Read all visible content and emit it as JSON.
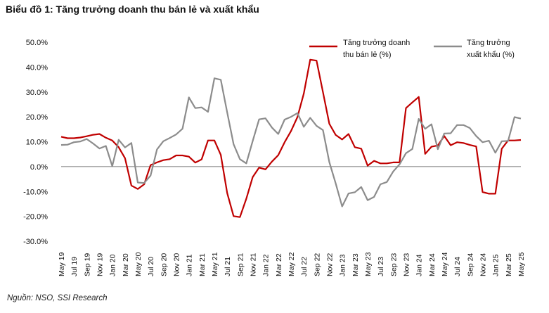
{
  "title": "Biểu đồ 1: Tăng trưởng doanh thu bán lẻ và xuất khẩu",
  "source": "Nguồn: NSO, SSI Research",
  "chart_data": {
    "type": "line",
    "ylim": [
      -30,
      50
    ],
    "yticks": [
      -30,
      -20,
      -10,
      0,
      10,
      20,
      30,
      40,
      50
    ],
    "ytick_labels": [
      "-30.0%",
      "-20.0%",
      "-10.0%",
      "0.0%",
      "10.0%",
      "20.0%",
      "30.0%",
      "40.0%",
      "50.0%"
    ],
    "legend_position": "top-right",
    "x": [
      "May 19",
      "Jun 19",
      "Jul 19",
      "Aug 19",
      "Sep 19",
      "Oct 19",
      "Nov 19",
      "Dec 19",
      "Jan 20",
      "Feb 20",
      "Mar 20",
      "Apr 20",
      "May 20",
      "Jun 20",
      "Jul 20",
      "Aug 20",
      "Sep 20",
      "Oct 20",
      "Nov 20",
      "Dec 20",
      "Jan 21",
      "Feb 21",
      "Mar 21",
      "Apr 21",
      "May 21",
      "Jun 21",
      "Jul 21",
      "Aug 21",
      "Sep 21",
      "Oct 21",
      "Nov 21",
      "Dec 21",
      "Jan 22",
      "Feb 22",
      "Mar 22",
      "Apr 22",
      "May 22",
      "Jun 22",
      "Jul 22",
      "Aug 22",
      "Sep 22",
      "Oct 22",
      "Nov 22",
      "Dec 22",
      "Jan 23",
      "Feb 23",
      "Mar 23",
      "Apr 23",
      "May 23",
      "Jun 23",
      "Jul 23",
      "Aug 23",
      "Sep 23",
      "Oct 23",
      "Nov 23",
      "Dec 23",
      "Jan 24",
      "Feb 24",
      "Mar 24",
      "Apr 24",
      "May 24",
      "Jun 24",
      "Jul 24",
      "Aug 24",
      "Sep 24",
      "Oct 24",
      "Nov 24",
      "Dec 24",
      "Jan 25",
      "Feb 25",
      "Mar 25",
      "Apr 25",
      "May 25"
    ],
    "xtick_labels": [
      "May 19",
      "Jul 19",
      "Sep 19",
      "Nov 19",
      "Jan 20",
      "Mar 20",
      "May 20",
      "Jul 20",
      "Sep 20",
      "Nov 20",
      "Jan 21",
      "Mar 21",
      "May 21",
      "Jul 21",
      "Sep 21",
      "Nov 21",
      "Jan 22",
      "Mar 22",
      "May 22",
      "Jul 22",
      "Sep 22",
      "Nov 22",
      "Jan 23",
      "Mar 23",
      "May 23",
      "Jul 23",
      "Sep 23",
      "Nov 23",
      "Jan 24",
      "Mar 24",
      "May 24",
      "Jul 24",
      "Sep 24",
      "Nov 24",
      "Jan 25",
      "Mar 25",
      "May 25"
    ],
    "series": [
      {
        "name": "Tăng trưởng doanh thu bán lẻ (%)",
        "legend_lines": [
          "Tăng trưởng doanh",
          "thu bán lẻ (%)"
        ],
        "color": "#c00000",
        "values": [
          12.0,
          11.4,
          11.4,
          11.7,
          12.2,
          12.8,
          13.1,
          11.6,
          10.5,
          7.8,
          3.4,
          -7.6,
          -9.0,
          -7.1,
          0.6,
          1.7,
          2.6,
          3.0,
          4.5,
          4.5,
          4.0,
          1.6,
          2.9,
          10.5,
          10.5,
          4.7,
          -10.6,
          -19.9,
          -20.3,
          -12.9,
          -4.2,
          -0.4,
          -1.1,
          2.0,
          4.6,
          9.8,
          14.3,
          19.9,
          29.4,
          43.0,
          42.6,
          30.0,
          17.2,
          12.7,
          10.9,
          13.1,
          7.8,
          7.2,
          0.4,
          2.3,
          1.3,
          1.3,
          1.7,
          1.7,
          23.5,
          25.8,
          28.0,
          5.1,
          8.0,
          8.5,
          12.3,
          8.6,
          9.8,
          9.5,
          8.7,
          8.1,
          -10.2,
          -10.9,
          -10.9,
          7.2,
          10.5,
          10.5,
          10.7
        ]
      },
      {
        "name": "Tăng trưởng xuất khẩu (%)",
        "legend_lines": [
          "Tăng trưởng",
          "xuất khẩu (%)"
        ],
        "color": "#8c8c8c",
        "values": [
          8.7,
          8.8,
          9.8,
          10.1,
          11.1,
          9.3,
          7.3,
          8.3,
          0.2,
          10.8,
          7.7,
          9.5,
          -6.4,
          -6.6,
          -3.6,
          6.9,
          10.2,
          11.5,
          12.9,
          15.2,
          27.8,
          23.5,
          23.8,
          22.0,
          35.5,
          34.9,
          21.8,
          9.0,
          3.0,
          1.3,
          10.3,
          19.0,
          19.4,
          15.7,
          13.1,
          18.9,
          20.0,
          21.5,
          16.0,
          19.6,
          16.4,
          14.7,
          1.8,
          -6.8,
          -16.0,
          -10.8,
          -10.3,
          -8.2,
          -13.5,
          -12.2,
          -7.1,
          -6.2,
          -2.0,
          0.9,
          5.4,
          7.1,
          19.2,
          15.2,
          17.0,
          7.0,
          13.3,
          13.4,
          16.7,
          16.7,
          15.5,
          12.3,
          9.8,
          10.4,
          5.6,
          10.2,
          10.3,
          19.9,
          19.3
        ]
      }
    ]
  }
}
